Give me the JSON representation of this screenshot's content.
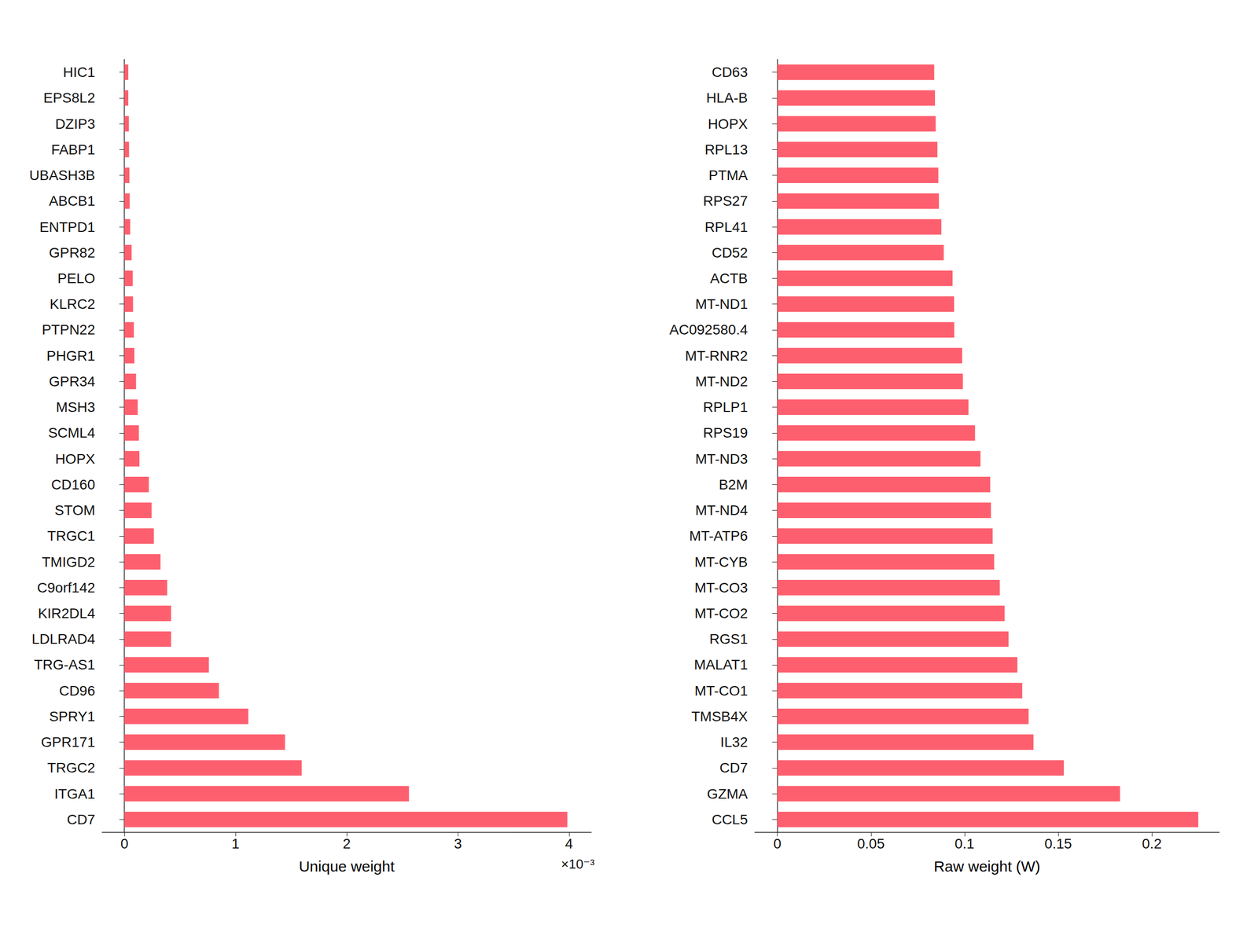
{
  "chart_data": [
    {
      "type": "bar",
      "orientation": "horizontal",
      "color": "#fe5f6e",
      "grid": false,
      "x_label": "Unique weight",
      "annotation": "×10⁻³",
      "categories": [
        "HIC1",
        "EPS8L2",
        "DZIP3",
        "FABP1",
        "UBASH3B",
        "ABCB1",
        "ENTPD1",
        "GPR82",
        "PELO",
        "KLRC2",
        "PTPN22",
        "PHGR1",
        "GPR34",
        "MSH3",
        "SCML4",
        "HOPX",
        "CD160",
        "STOM",
        "TRGC1",
        "TMIGD2",
        "C9orf142",
        "KIR2DL4",
        "LDLRAD4",
        "TRG-AS1",
        "CD96",
        "SPRY1",
        "GPR171",
        "TRGC2",
        "ITGA1",
        "CD7"
      ],
      "values": [
        0.035,
        0.035,
        0.04,
        0.042,
        0.045,
        0.048,
        0.052,
        0.065,
        0.075,
        0.078,
        0.085,
        0.09,
        0.105,
        0.12,
        0.13,
        0.135,
        0.22,
        0.245,
        0.265,
        0.325,
        0.385,
        0.42,
        0.42,
        0.76,
        0.85,
        1.115,
        1.445,
        1.595,
        2.56,
        3.985
      ],
      "xlim": [
        -0.2,
        4.2
      ],
      "xticks": [
        0,
        1,
        2,
        3,
        4
      ]
    },
    {
      "type": "bar",
      "orientation": "horizontal",
      "color": "#fe5f6e",
      "grid": false,
      "x_label": "Raw weight (W)",
      "categories": [
        "CD63",
        "HLA-B",
        "HOPX",
        "RPL13",
        "PTMA",
        "RPS27",
        "RPL41",
        "CD52",
        "ACTB",
        "MT-ND1",
        "AC092580.4",
        "MT-RNR2",
        "MT-ND2",
        "RPLP1",
        "RPS19",
        "MT-ND3",
        "B2M",
        "MT-ND4",
        "MT-ATP6",
        "MT-CYB",
        "MT-CO3",
        "MT-CO2",
        "RGS1",
        "MALAT1",
        "MT-CO1",
        "TMSB4X",
        "IL32",
        "CD7",
        "GZMA",
        "CCL5"
      ],
      "values": [
        0.0838,
        0.0842,
        0.0846,
        0.0855,
        0.086,
        0.0863,
        0.0876,
        0.0889,
        0.0936,
        0.0944,
        0.0945,
        0.0987,
        0.0991,
        0.1021,
        0.1056,
        0.1085,
        0.1137,
        0.1141,
        0.115,
        0.1158,
        0.1188,
        0.1214,
        0.1235,
        0.1282,
        0.1308,
        0.1342,
        0.1368,
        0.153,
        0.183,
        0.2248
      ],
      "xlim": [
        -0.012,
        0.236
      ],
      "xticks": [
        0,
        0.05,
        0.1,
        0.15,
        0.2
      ]
    }
  ]
}
